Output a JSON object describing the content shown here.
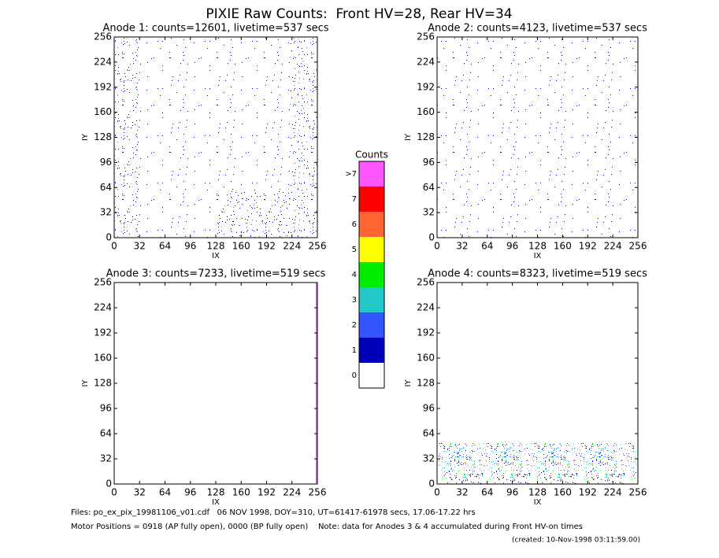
{
  "title": "PIXIE Raw Counts:  Front HV=28, Rear HV=34",
  "chart_data": [
    {
      "type": "heatmap",
      "title": "Anode 1: counts=12601, livetime=537 secs",
      "xlabel": "IX",
      "ylabel": "IY",
      "xlim": [
        0,
        256
      ],
      "ylim": [
        0,
        256
      ],
      "xticks": [
        0,
        32,
        64,
        96,
        128,
        160,
        192,
        224,
        256
      ],
      "yticks": [
        0,
        32,
        64,
        96,
        128,
        160,
        192,
        224,
        256
      ]
    },
    {
      "type": "heatmap",
      "title": "Anode 2: counts=4123, livetime=537 secs",
      "xlabel": "IX",
      "ylabel": "IY",
      "xlim": [
        0,
        256
      ],
      "ylim": [
        0,
        256
      ],
      "xticks": [
        0,
        32,
        64,
        96,
        128,
        160,
        192,
        224,
        256
      ],
      "yticks": [
        0,
        32,
        64,
        96,
        128,
        160,
        192,
        224,
        256
      ]
    },
    {
      "type": "heatmap",
      "title": "Anode 3: counts=7233, livetime=519 secs",
      "xlabel": "IX",
      "ylabel": "IY",
      "xlim": [
        0,
        256
      ],
      "ylim": [
        0,
        256
      ],
      "xticks": [
        0,
        32,
        64,
        96,
        128,
        160,
        192,
        224,
        256
      ],
      "yticks": [
        0,
        32,
        64,
        96,
        128,
        160,
        192,
        224,
        256
      ]
    },
    {
      "type": "heatmap",
      "title": "Anode 4: counts=8323, livetime=519 secs",
      "xlabel": "IX",
      "ylabel": "IY",
      "xlim": [
        0,
        256
      ],
      "ylim": [
        0,
        256
      ],
      "xticks": [
        0,
        32,
        64,
        96,
        128,
        160,
        192,
        224,
        256
      ],
      "yticks": [
        0,
        32,
        64,
        96,
        128,
        160,
        192,
        224,
        256
      ]
    }
  ],
  "colorbar": {
    "title": "Counts",
    "labels": [
      "0",
      "1",
      "2",
      "3",
      "4",
      "5",
      "6",
      "7",
      ">7"
    ],
    "colors": [
      "#ffffff",
      "#0000bb",
      "#3355ff",
      "#22c8c8",
      "#00ee00",
      "#ffff00",
      "#ff6633",
      "#ff0000",
      "#ff55ff"
    ]
  },
  "footer": {
    "files": "Files: po_ex_pix_19981106_v01.cdf   06 NOV 1998, DOY=310, UT=61417-61978 secs, 17.06-17.22 hrs",
    "motor": "Motor Positions = 0918 (AP fully open), 0000 (BP fully open)    Note: data for Anodes 3 & 4 accumulated during Front HV-on times",
    "created": "(created: 10-Nov-1998 03:11:59.00)"
  }
}
